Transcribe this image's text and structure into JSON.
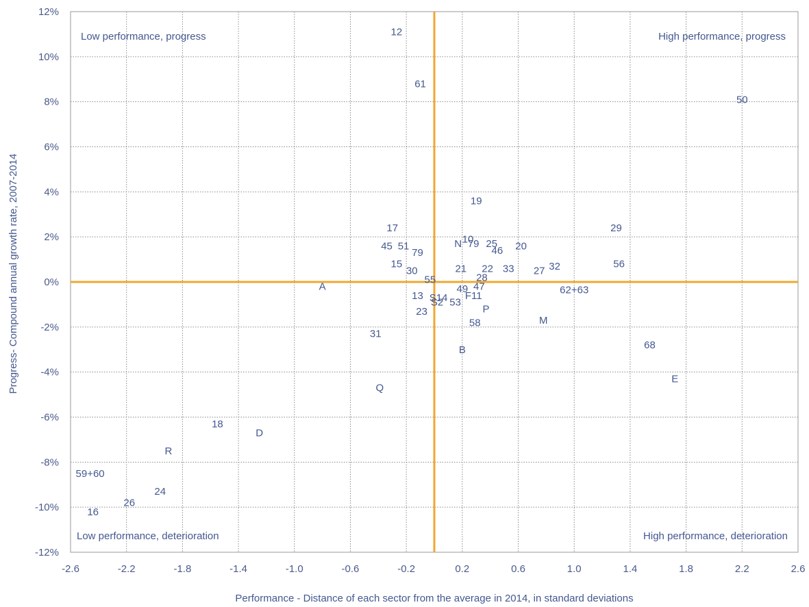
{
  "chart_data": {
    "type": "scatter",
    "xlabel": "Performance - Distance of each sector from the average in 2014, in standard deviations",
    "ylabel": "Progress- Compound annual growth rate, 2007-2014",
    "xlim": [
      -2.6,
      2.6
    ],
    "ylim": [
      -12,
      12
    ],
    "x_ticks": [
      "-2.6",
      "-2.2",
      "-1.8",
      "-1.4",
      "-1.0",
      "-0.6",
      "-0.2",
      "0.2",
      "0.6",
      "1.0",
      "1.4",
      "1.8",
      "2.2",
      "2.6"
    ],
    "y_ticks": [
      "12%",
      "10%",
      "8%",
      "6%",
      "4%",
      "2%",
      "0%",
      "-2%",
      "-4%",
      "-6%",
      "-8%",
      "-10%",
      "-12%"
    ],
    "grid": true,
    "reference_lines": {
      "x": 0,
      "y": 0,
      "color": "#f0a830"
    },
    "quadrant_labels": {
      "top_left": "Low performance, progress",
      "top_right": "High performance, progress",
      "bottom_left": "Low performance, deterioration",
      "bottom_right": "High performance, deterioration"
    },
    "points": [
      {
        "label": "12",
        "x": -0.27,
        "y": 11.1
      },
      {
        "label": "61",
        "x": -0.1,
        "y": 8.8
      },
      {
        "label": "50",
        "x": 2.2,
        "y": 8.1
      },
      {
        "label": "19",
        "x": 0.3,
        "y": 3.6
      },
      {
        "label": "29",
        "x": 1.3,
        "y": 2.4
      },
      {
        "label": "17",
        "x": -0.3,
        "y": 2.4
      },
      {
        "label": "45",
        "x": -0.34,
        "y": 1.6
      },
      {
        "label": "51",
        "x": -0.22,
        "y": 1.6
      },
      {
        "label": "79",
        "x": -0.12,
        "y": 1.3
      },
      {
        "label": "N",
        "x": 0.17,
        "y": 1.7
      },
      {
        "label": "10",
        "x": 0.24,
        "y": 1.9
      },
      {
        "label": "79",
        "x": 0.28,
        "y": 1.7
      },
      {
        "label": "25",
        "x": 0.41,
        "y": 1.7
      },
      {
        "label": "46",
        "x": 0.45,
        "y": 1.4
      },
      {
        "label": "20",
        "x": 0.62,
        "y": 1.6
      },
      {
        "label": "56",
        "x": 1.32,
        "y": 0.8
      },
      {
        "label": "15",
        "x": -0.27,
        "y": 0.8
      },
      {
        "label": "30",
        "x": -0.16,
        "y": 0.5
      },
      {
        "label": "21",
        "x": 0.19,
        "y": 0.6
      },
      {
        "label": "22",
        "x": 0.38,
        "y": 0.6
      },
      {
        "label": "33",
        "x": 0.53,
        "y": 0.6
      },
      {
        "label": "27",
        "x": 0.75,
        "y": 0.5
      },
      {
        "label": "32",
        "x": 0.86,
        "y": 0.7
      },
      {
        "label": "55",
        "x": -0.03,
        "y": 0.1
      },
      {
        "label": "28",
        "x": 0.34,
        "y": 0.2
      },
      {
        "label": "A",
        "x": -0.8,
        "y": -0.2
      },
      {
        "label": "49",
        "x": 0.2,
        "y": -0.3
      },
      {
        "label": "47",
        "x": 0.32,
        "y": -0.2
      },
      {
        "label": "62+63",
        "x": 1.0,
        "y": -0.35
      },
      {
        "label": "13",
        "x": -0.12,
        "y": -0.6
      },
      {
        "label": "S14",
        "x": 0.03,
        "y": -0.7
      },
      {
        "label": "F11",
        "x": 0.28,
        "y": -0.6
      },
      {
        "label": "S2",
        "x": 0.02,
        "y": -0.9
      },
      {
        "label": "53",
        "x": 0.15,
        "y": -0.9
      },
      {
        "label": "23",
        "x": -0.09,
        "y": -1.3
      },
      {
        "label": "P",
        "x": 0.37,
        "y": -1.2
      },
      {
        "label": "M",
        "x": 0.78,
        "y": -1.7
      },
      {
        "label": "58",
        "x": 0.29,
        "y": -1.8
      },
      {
        "label": "31",
        "x": -0.42,
        "y": -2.3
      },
      {
        "label": "68",
        "x": 1.54,
        "y": -2.8
      },
      {
        "label": "B",
        "x": 0.2,
        "y": -3.0
      },
      {
        "label": "E",
        "x": 1.72,
        "y": -4.3
      },
      {
        "label": "Q",
        "x": -0.39,
        "y": -4.7
      },
      {
        "label": "18",
        "x": -1.55,
        "y": -6.3
      },
      {
        "label": "D",
        "x": -1.25,
        "y": -6.7
      },
      {
        "label": "R",
        "x": -1.9,
        "y": -7.5
      },
      {
        "label": "59+60",
        "x": -2.46,
        "y": -8.5
      },
      {
        "label": "24",
        "x": -1.96,
        "y": -9.3
      },
      {
        "label": "26",
        "x": -2.18,
        "y": -9.8
      },
      {
        "label": "16",
        "x": -2.44,
        "y": -10.2
      }
    ]
  },
  "colors": {
    "axis_lines": "#f0a830",
    "text": "#44588f",
    "grid": "#8a8a8a"
  }
}
